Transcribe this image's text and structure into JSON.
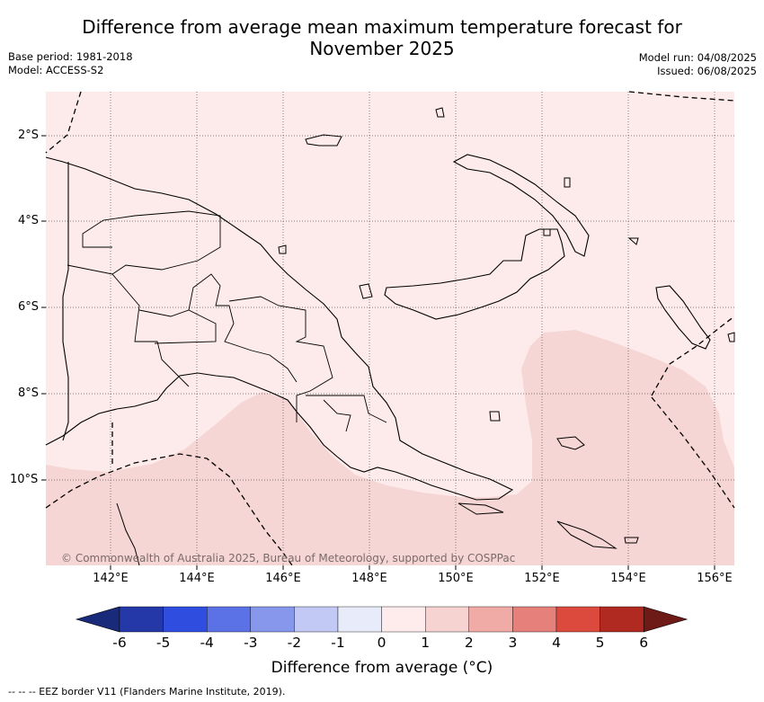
{
  "title": "Difference from average mean maximum temperature forecast for November 2025",
  "title_line1": "Difference from average mean maximum temperature forecast for",
  "title_line2": "November 2025",
  "base_period": "Base period: 1981-2018",
  "model": "Model: ACCESS-S2",
  "model_run": "Model run: 04/08/2025",
  "issued": "Issued: 06/08/2025",
  "copyright": "© Commonwealth of Australia 2025, Bureau of Meteorology, supported by COSPPac",
  "map": {
    "lon_labels": [
      "142°E",
      "144°E",
      "146°E",
      "148°E",
      "150°E",
      "152°E",
      "154°E",
      "156°E"
    ],
    "lat_labels": [
      "2°S",
      "4°S",
      "6°S",
      "8°S",
      "10°S"
    ],
    "legend_colorbar": {
      "title": "Difference from average (°C)",
      "tick_labels": [
        "-6",
        "-5",
        "-4",
        "-3",
        "-2",
        "-1",
        "0",
        "1",
        "2",
        "3",
        "4",
        "5",
        "6"
      ],
      "colors": [
        "#1a2a7a",
        "#2438a8",
        "#2f4ee0",
        "#5a72e6",
        "#8797ec",
        "#c2c9f4",
        "#e8ebfa",
        "#fdeceb",
        "#f6d3d0",
        "#f0aba6",
        "#e5807a",
        "#dc4a3e",
        "#b02a22",
        "#6e1a16"
      ]
    },
    "land_fill_color": "#fcebea",
    "warmer_zone_color": "#f6d6d4"
  },
  "footnote": "-- -- -- EEZ border V11 (Flanders Marine Institute, 2019)."
}
